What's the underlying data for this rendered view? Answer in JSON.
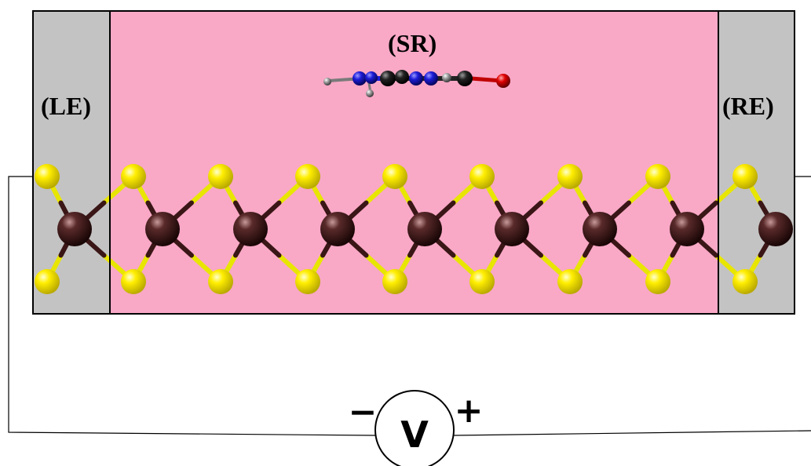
{
  "diagram": {
    "regions": {
      "left_electrode": {
        "label": "(LE)",
        "fill": "#c3c3c3"
      },
      "scattering_region": {
        "label": "(SR)",
        "fill": "#f9a8c6"
      },
      "right_electrode": {
        "label": "(RE)",
        "fill": "#c3c3c3"
      }
    },
    "circuit": {
      "meter_symbol": "V",
      "negative_sign": "−",
      "positive_sign": "+"
    },
    "atom_colors": {
      "sulfur": "#ffee00",
      "metal": "#3a1616",
      "bond_yellow": "#e8e600",
      "bond_dark": "#3a1616",
      "carbon": "#1a1a1a",
      "nitrogen": "#1c1cd8",
      "hydrogen": "#9a9a9a",
      "oxygen": "#e00000"
    },
    "icons": [
      "voltmeter-icon",
      "molecule-icon",
      "monolayer-lattice-icon"
    ]
  }
}
